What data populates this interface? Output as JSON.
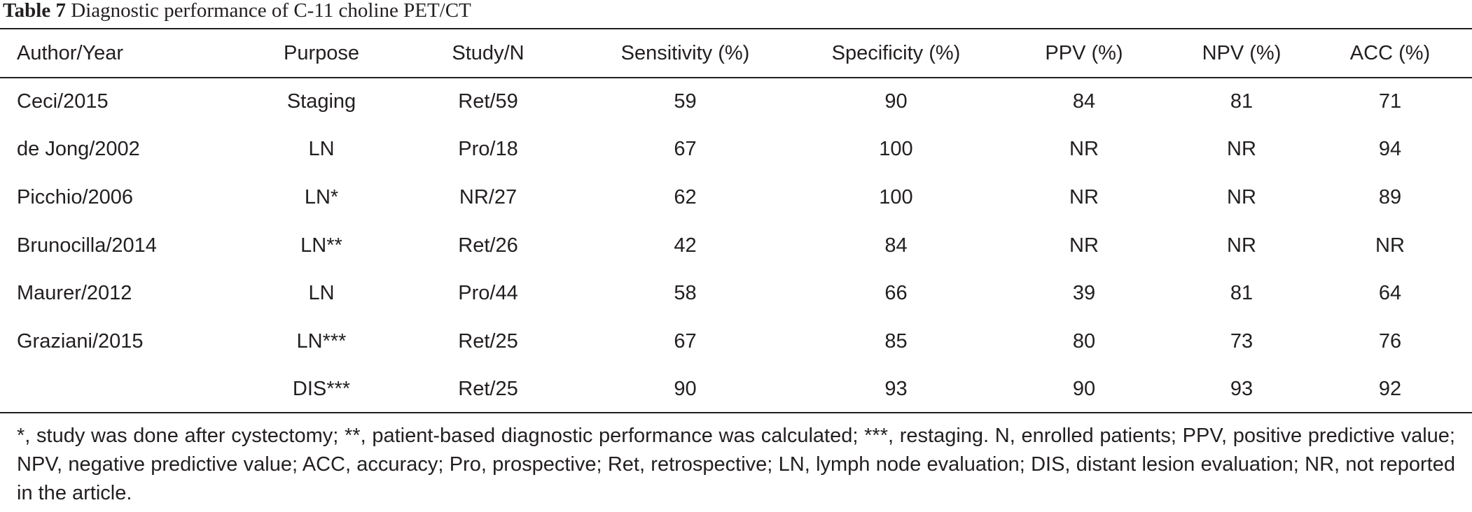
{
  "caption": {
    "label": "Table 7",
    "title": "Diagnostic performance of C-11 choline PET/CT"
  },
  "columns": [
    "Author/Year",
    "Purpose",
    "Study/N",
    "Sensitivity (%)",
    "Specificity (%)",
    "PPV (%)",
    "NPV (%)",
    "ACC (%)"
  ],
  "rows": [
    [
      "Ceci/2015",
      "Staging",
      "Ret/59",
      "59",
      "90",
      "84",
      "81",
      "71"
    ],
    [
      "de Jong/2002",
      "LN",
      "Pro/18",
      "67",
      "100",
      "NR",
      "NR",
      "94"
    ],
    [
      "Picchio/2006",
      "LN*",
      "NR/27",
      "62",
      "100",
      "NR",
      "NR",
      "89"
    ],
    [
      "Brunocilla/2014",
      "LN**",
      "Ret/26",
      "42",
      "84",
      "NR",
      "NR",
      "NR"
    ],
    [
      "Maurer/2012",
      "LN",
      "Pro/44",
      "58",
      "66",
      "39",
      "81",
      "64"
    ],
    [
      "Graziani/2015",
      "LN***",
      "Ret/25",
      "67",
      "85",
      "80",
      "73",
      "76"
    ],
    [
      "",
      "DIS***",
      "Ret/25",
      "90",
      "93",
      "90",
      "93",
      "92"
    ]
  ],
  "footnote": "*, study was done after cystectomy; **, patient-based diagnostic performance was calculated; ***, restaging. N, enrolled patients; PPV, positive predictive value; NPV, negative predictive value; ACC, accuracy; Pro, prospective; Ret, retrospective; LN, lymph node evaluation; DIS, distant lesion evaluation; NR, not reported in the article."
}
